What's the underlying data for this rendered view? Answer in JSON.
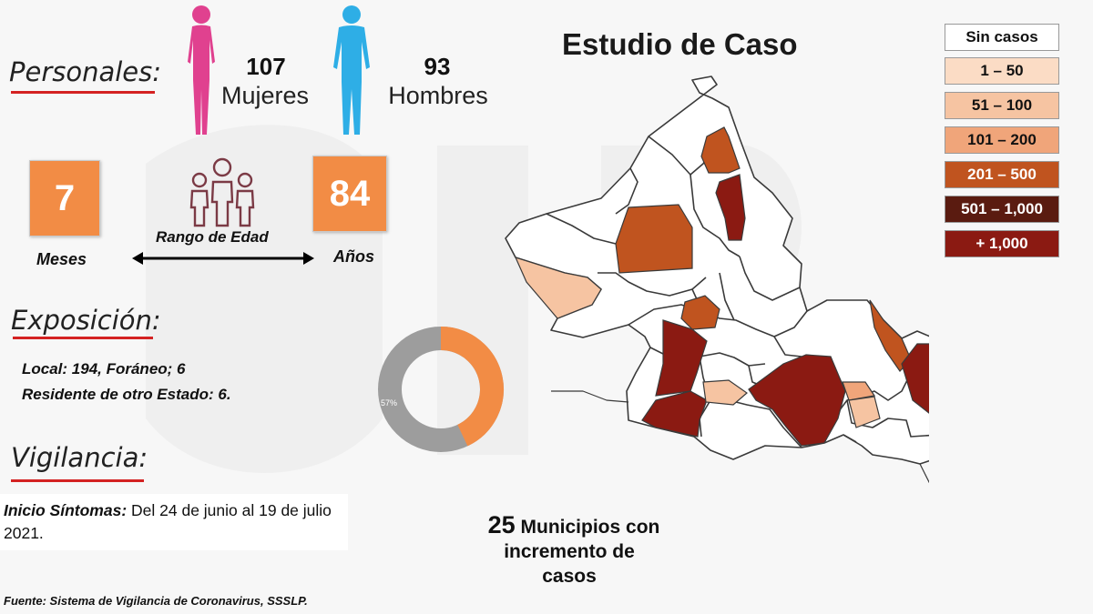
{
  "personales": {
    "title": "Personales:",
    "mujeres_count": "107",
    "mujeres_label": "Mujeres",
    "hombres_count": "93",
    "hombres_label": "Hombres"
  },
  "edad": {
    "min_value": "7",
    "min_label": "Meses",
    "max_value": "84",
    "max_label": "Años",
    "range_label": "Rango de Edad"
  },
  "exposicion": {
    "title": "Exposición:",
    "line1": "Local:  194, Foráneo; 6",
    "line2": "Residente de otro Estado: 6."
  },
  "donut": {
    "label": "57%",
    "gray_fraction": 0.57,
    "colors": {
      "gray": "#9d9d9d",
      "orange": "#f28c45"
    }
  },
  "vigilancia": {
    "title": "Vigilancia:",
    "inicio_label": "Inicio Síntomas:",
    "inicio_text": " Del 24 de junio al 19 de julio 2021."
  },
  "map": {
    "title": "Estudio de Caso",
    "legend": [
      {
        "label": "Sin casos",
        "color": "#ffffff",
        "text_color": "#111111"
      },
      {
        "label": "1 – 50",
        "color": "#fbdcc5",
        "text_color": "#111111"
      },
      {
        "label": "51 – 100",
        "color": "#f6c4a2",
        "text_color": "#111111"
      },
      {
        "label": "101 – 200",
        "color": "#f0a57a",
        "text_color": "#111111"
      },
      {
        "label": "201 – 500",
        "color": "#c0541f",
        "text_color": "#ffffff"
      },
      {
        "label": "501 – 1,000",
        "color": "#5a1b10",
        "text_color": "#ffffff"
      },
      {
        "label": "+ 1,000",
        "color": "#8b1a12",
        "text_color": "#ffffff"
      }
    ]
  },
  "municipios": {
    "count": "25",
    "text_line1": "Municipios con",
    "text_line2": "incremento de",
    "text_line3": "casos"
  },
  "fuente": "Fuente: Sistema de Vigilancia de Coronavirus, SSSLP.",
  "icons": [
    "woman-figure-icon",
    "man-figure-icon",
    "people-group-icon",
    "double-arrow-icon"
  ]
}
